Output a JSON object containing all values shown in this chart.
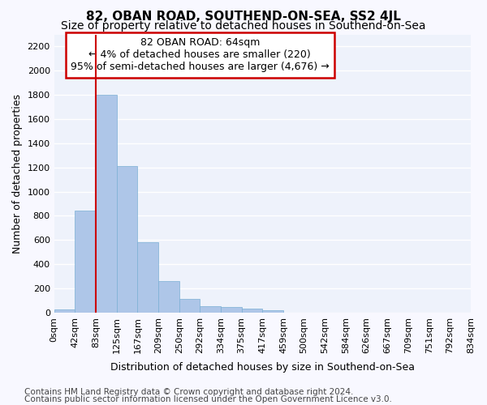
{
  "title": "82, OBAN ROAD, SOUTHEND-ON-SEA, SS2 4JL",
  "subtitle": "Size of property relative to detached houses in Southend-on-Sea",
  "xlabel": "Distribution of detached houses by size in Southend-on-Sea",
  "ylabel": "Number of detached properties",
  "bar_heights": [
    25,
    840,
    1800,
    1210,
    585,
    260,
    115,
    50,
    45,
    30,
    18,
    0,
    0,
    0,
    0,
    0,
    0,
    0,
    0,
    0
  ],
  "bar_color": "#aec6e8",
  "bar_edgecolor": "#7bafd4",
  "x_tick_labels": [
    "0sqm",
    "42sqm",
    "83sqm",
    "125sqm",
    "167sqm",
    "209sqm",
    "250sqm",
    "292sqm",
    "334sqm",
    "375sqm",
    "417sqm",
    "459sqm",
    "500sqm",
    "542sqm",
    "584sqm",
    "626sqm",
    "667sqm",
    "709sqm",
    "751sqm",
    "792sqm",
    "834sqm"
  ],
  "n_bars": 20,
  "ylim": [
    0,
    2300
  ],
  "yticks": [
    0,
    200,
    400,
    600,
    800,
    1000,
    1200,
    1400,
    1600,
    1800,
    2000,
    2200
  ],
  "vline_x": 1.5,
  "annotation_text": "82 OBAN ROAD: 64sqm\n← 4% of detached houses are smaller (220)\n95% of semi-detached houses are larger (4,676) →",
  "annotation_box_color": "#ffffff",
  "annotation_box_edgecolor": "#cc0000",
  "footer_line1": "Contains HM Land Registry data © Crown copyright and database right 2024.",
  "footer_line2": "Contains public sector information licensed under the Open Government Licence v3.0.",
  "background_color": "#eef2fb",
  "grid_color": "#ffffff",
  "title_fontsize": 11,
  "subtitle_fontsize": 10,
  "axis_label_fontsize": 9,
  "tick_fontsize": 8,
  "annotation_fontsize": 9,
  "footer_fontsize": 7.5
}
